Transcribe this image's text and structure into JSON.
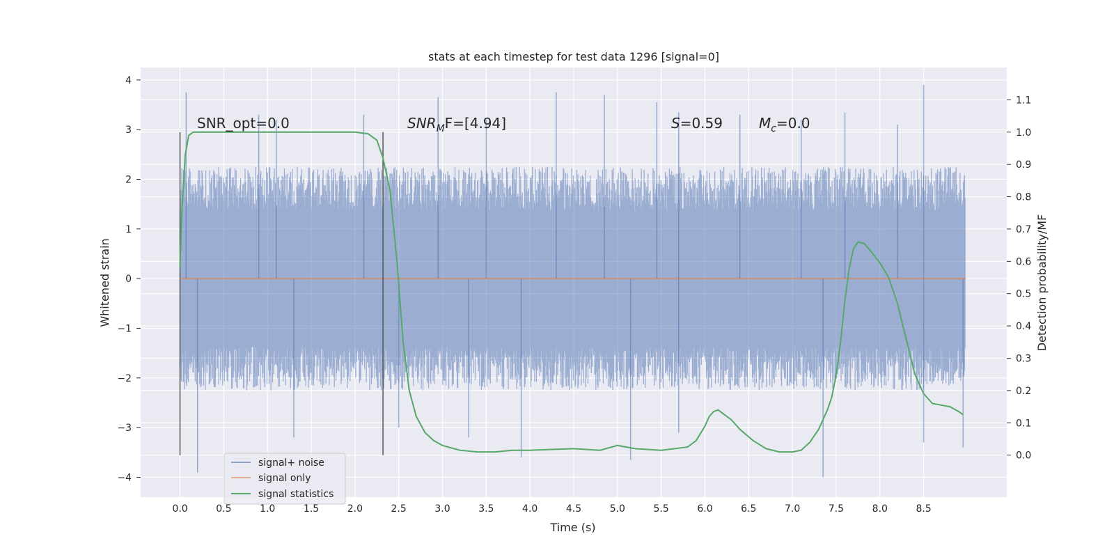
{
  "chart_data": {
    "type": "line",
    "title": "stats at each timestep for test data 1296 [signal=0]",
    "xlabel": "Time (s)",
    "ylabel_left": "Whitened strain",
    "ylabel_right": "Detection probability/MF",
    "xlim": [
      -0.45,
      9.45
    ],
    "ylim_left": [
      -4.4,
      4.25
    ],
    "ylim_right": [
      -0.13,
      1.2
    ],
    "x_ticks": [
      "0.0",
      "0.5",
      "1.0",
      "1.5",
      "2.0",
      "2.5",
      "3.0",
      "3.5",
      "4.0",
      "4.5",
      "5.0",
      "5.5",
      "6.0",
      "6.5",
      "7.0",
      "7.5",
      "8.0",
      "8.5"
    ],
    "y_left_ticks": [
      "−4",
      "−3",
      "−2",
      "−1",
      "0",
      "1",
      "2",
      "3",
      "4"
    ],
    "y_right_ticks": [
      "0.0",
      "0.1",
      "0.2",
      "0.3",
      "0.4",
      "0.5",
      "0.6",
      "0.7",
      "0.8",
      "0.9",
      "1.0",
      "1.1"
    ],
    "grid": true,
    "legend_position": "lower-left",
    "annotations": [
      {
        "id": "snr-opt",
        "text": "SNR_opt=0.0"
      },
      {
        "id": "snr-mf",
        "prefix": "SNR",
        "sub": "M",
        "suffix": "F=[4.94]"
      },
      {
        "id": "s",
        "prefix": "S",
        "suffix": "=0.59"
      },
      {
        "id": "mc",
        "prefix": "M",
        "sub": "c",
        "suffix": "=0.0"
      }
    ],
    "vertical_markers": [
      0.0,
      2.32
    ],
    "noise_envelope": {
      "x_start": 0.0,
      "x_end": 8.98,
      "approx_amplitude": 2.5
    },
    "series": [
      {
        "name": "signal+ noise",
        "color": "#4c72b0",
        "note_values": "dense noise trace, approximate envelope",
        "peaks_up": [
          [
            0.07,
            3.75
          ],
          [
            0.9,
            3.3
          ],
          [
            1.1,
            3.2
          ],
          [
            2.1,
            3.3
          ],
          [
            2.95,
            3.65
          ],
          [
            3.5,
            3.2
          ],
          [
            4.3,
            3.75
          ],
          [
            4.85,
            3.7
          ],
          [
            5.45,
            3.55
          ],
          [
            5.7,
            3.35
          ],
          [
            6.4,
            3.3
          ],
          [
            7.1,
            3.2
          ],
          [
            7.6,
            3.35
          ],
          [
            8.2,
            3.1
          ],
          [
            8.5,
            3.9
          ]
        ],
        "peaks_down": [
          [
            0.2,
            -3.9
          ],
          [
            1.3,
            -3.2
          ],
          [
            2.5,
            -3.0
          ],
          [
            3.3,
            -3.2
          ],
          [
            3.9,
            -3.6
          ],
          [
            5.15,
            -3.65
          ],
          [
            5.7,
            -3.1
          ],
          [
            7.35,
            -4.0
          ],
          [
            8.5,
            -3.3
          ],
          [
            8.95,
            -3.4
          ]
        ]
      },
      {
        "name": "signal only",
        "color": "#dd8452",
        "x": [
          0.0,
          8.98
        ],
        "y": [
          0.0,
          0.0
        ]
      },
      {
        "name": "signal statistics",
        "color": "#55a868",
        "axis": "right",
        "x": [
          0.0,
          0.02,
          0.06,
          0.1,
          0.15,
          0.25,
          0.4,
          0.6,
          1.0,
          1.5,
          2.0,
          2.15,
          2.25,
          2.32,
          2.4,
          2.48,
          2.55,
          2.62,
          2.7,
          2.8,
          2.9,
          3.0,
          3.2,
          3.4,
          3.6,
          3.8,
          4.0,
          4.5,
          4.8,
          5.0,
          5.2,
          5.5,
          5.8,
          5.9,
          6.0,
          6.05,
          6.1,
          6.15,
          6.2,
          6.3,
          6.4,
          6.55,
          6.7,
          6.85,
          7.0,
          7.1,
          7.2,
          7.3,
          7.4,
          7.45,
          7.5,
          7.55,
          7.6,
          7.65,
          7.7,
          7.75,
          7.82,
          7.9,
          8.0,
          8.1,
          8.2,
          8.3,
          8.4,
          8.5,
          8.6,
          8.7,
          8.8,
          8.9,
          8.95
        ],
        "y": [
          0.58,
          0.75,
          0.93,
          0.99,
          1.0,
          1.0,
          1.0,
          1.0,
          1.0,
          1.0,
          1.0,
          0.995,
          0.975,
          0.92,
          0.82,
          0.6,
          0.35,
          0.2,
          0.12,
          0.07,
          0.045,
          0.03,
          0.015,
          0.01,
          0.01,
          0.015,
          0.015,
          0.02,
          0.015,
          0.03,
          0.02,
          0.015,
          0.025,
          0.045,
          0.09,
          0.12,
          0.135,
          0.14,
          0.13,
          0.11,
          0.08,
          0.045,
          0.02,
          0.01,
          0.01,
          0.015,
          0.04,
          0.08,
          0.14,
          0.18,
          0.25,
          0.35,
          0.48,
          0.58,
          0.64,
          0.66,
          0.655,
          0.63,
          0.595,
          0.55,
          0.47,
          0.36,
          0.25,
          0.19,
          0.16,
          0.155,
          0.15,
          0.135,
          0.125
        ]
      }
    ]
  }
}
